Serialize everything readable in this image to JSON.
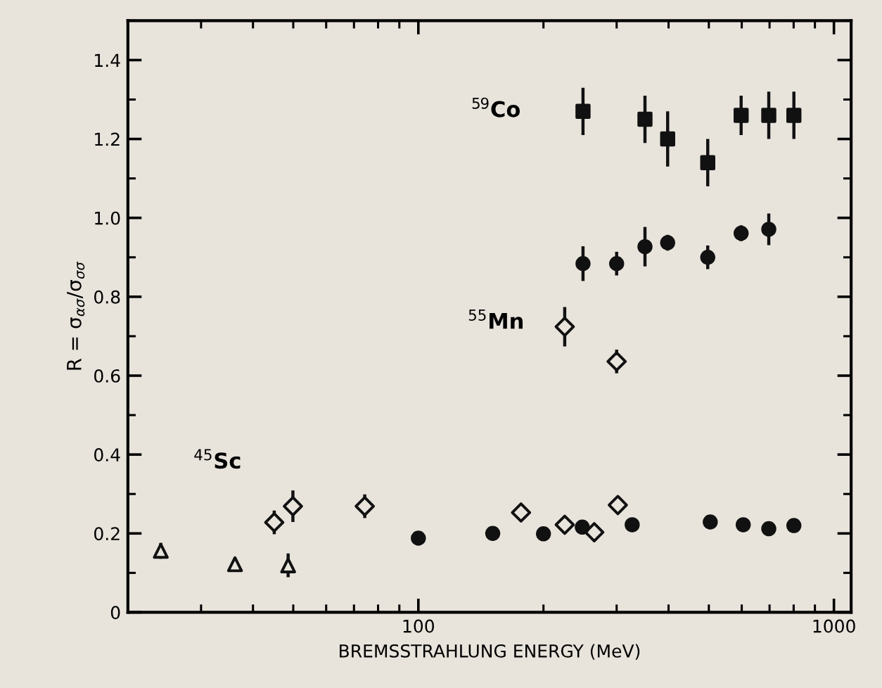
{
  "chart_data": {
    "type": "scatter",
    "xlabel": "BREMSSTRAHLUNG ENERGY (MeV)",
    "ylabel": "R = σ$_{ασ}$/σ$_{σσ}$",
    "log": "x",
    "xlim": [
      20,
      1100
    ],
    "xticks": [
      100,
      1000
    ],
    "ylim": [
      0,
      1.5
    ],
    "yticks": [
      0,
      0.2,
      0.4,
      0.6,
      0.8,
      {
        "value": 1.0,
        "label": "1.0"
      },
      1.2,
      1.4
    ],
    "grid": false,
    "legend": false,
    "series": [
      {
        "marker": "square",
        "color": "#111111",
        "x": [
          249,
          351,
          398,
          497,
          598,
          697,
          801
        ],
        "values": [
          1.27,
          1.25,
          1.2,
          1.14,
          1.26,
          1.26,
          1.26
        ],
        "errors": [
          0.06,
          0.06,
          0.07,
          0.06,
          0.05,
          0.06,
          0.06
        ]
      },
      {
        "marker": "circle",
        "color": "#111111",
        "x": [
          249,
          300,
          351,
          398,
          497,
          598,
          697
        ],
        "values": [
          0.884,
          0.884,
          0.927,
          0.937,
          0.9,
          0.961,
          0.971
        ],
        "errors": [
          0.044,
          0.03,
          0.05,
          0.02,
          0.03,
          0.02,
          0.04
        ]
      },
      {
        "marker": "diamond",
        "color": "#111111",
        "x": [
          45,
          49.9,
          74.3,
          176.6,
          225,
          225,
          265,
          300,
          302
        ],
        "values": [
          0.228,
          0.269,
          0.269,
          0.253,
          0.724,
          0.222,
          0.203,
          0.636,
          0.272
        ],
        "errors": [
          0.03,
          0.04,
          0.03,
          0.015,
          0.05,
          0.01,
          0.015,
          0.03,
          0.02
        ]
      },
      {
        "marker": "triangle",
        "color": "#111111",
        "x": [
          24,
          36.2,
          48.6
        ],
        "values": [
          0.156,
          0.122,
          0.119
        ],
        "errors": [
          0.02,
          0.015,
          0.03
        ]
      },
      {
        "marker": "circle",
        "color": "#111111",
        "x": [
          100,
          151,
          200,
          248,
          327,
          504,
          605,
          697,
          801
        ],
        "values": [
          0.188,
          0.2,
          0.199,
          0.216,
          0.222,
          0.229,
          0.222,
          0.212,
          0.22
        ]
      }
    ],
    "annotations": [
      "$^{59}$Co",
      "$^{55}$Mn",
      "$^{45}$Sc"
    ]
  }
}
